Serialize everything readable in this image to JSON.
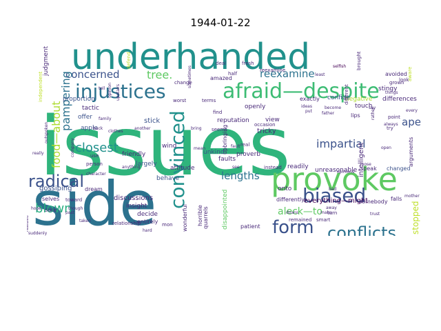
{
  "title": "1944-01-22",
  "words": [
    {
      "text": "issues",
      "color": "#2fb47c"
    },
    {
      "text": "side",
      "color": "#2c728e"
    },
    {
      "text": "underhanded",
      "color": "#21918c"
    },
    {
      "text": "provoke",
      "color": "#5ec962"
    },
    {
      "text": "afraid—despite",
      "color": "#3dbc74"
    },
    {
      "text": "injustices",
      "color": "#2c728e"
    },
    {
      "text": "biased",
      "color": "#3b528b"
    },
    {
      "text": "conflicts",
      "color": "#2c728e"
    },
    {
      "text": "form",
      "color": "#3b528b"
    },
    {
      "text": "convinced",
      "color": "#21918c"
    },
    {
      "text": "radical",
      "color": "#3b528b"
    },
    {
      "text": "blown",
      "color": "#28ae80"
    },
    {
      "text": "closest",
      "color": "#21918c"
    },
    {
      "text": "reexamine",
      "color": "#2c728e"
    },
    {
      "text": "concerned",
      "color": "#3b528b"
    },
    {
      "text": "tree.",
      "color": "#5ec962"
    },
    {
      "text": "impartial",
      "color": "#3b528b"
    },
    {
      "text": "lengths",
      "color": "#2c728e"
    },
    {
      "text": "pampering",
      "color": "#2c728e"
    },
    {
      "text": "food—about",
      "color": "#addc30"
    },
    {
      "text": "aleck—to",
      "color": "#5ec962"
    },
    {
      "text": "ape",
      "color": "#3b528b"
    },
    {
      "text": "stopped",
      "color": "#bddf26"
    },
    {
      "text": "everything—might",
      "color": "#440154"
    },
    {
      "text": "discussions",
      "color": "#482878"
    },
    {
      "text": "gossiping",
      "color": "#3b528b"
    },
    {
      "text": "intelligent",
      "color": "#482878"
    },
    {
      "text": "reputation",
      "color": "#482878"
    },
    {
      "text": "tricky",
      "color": "#482878"
    },
    {
      "text": "apple",
      "color": "#3b528b"
    },
    {
      "text": "attitude",
      "color": "#482878"
    },
    {
      "text": "insight",
      "color": "#482878"
    },
    {
      "text": "decide",
      "color": "#482878"
    },
    {
      "text": "behave",
      "color": "#3b528b"
    },
    {
      "text": "stick",
      "color": "#3b528b"
    },
    {
      "text": "tactic",
      "color": "#482878"
    },
    {
      "text": "unkind",
      "color": "#3b528b"
    },
    {
      "text": "proverb",
      "color": "#482878"
    },
    {
      "text": "offer",
      "color": "#3b528b"
    },
    {
      "text": "friendly",
      "color": "#482878"
    },
    {
      "text": "largely",
      "color": "#3b528b"
    },
    {
      "text": "wind",
      "color": "#482878"
    },
    {
      "text": "faults",
      "color": "#482878"
    },
    {
      "text": "differences",
      "color": "#482878"
    },
    {
      "text": "negative",
      "color": "#addc30"
    },
    {
      "text": "touch",
      "color": "#482878"
    },
    {
      "text": "confide",
      "color": "#3b528b"
    },
    {
      "text": "exactly",
      "color": "#482878"
    },
    {
      "text": "amazed",
      "color": "#482878"
    },
    {
      "text": "proportion",
      "color": "#3b528b"
    },
    {
      "text": "judgment",
      "color": "#482878"
    },
    {
      "text": "stingy",
      "color": "#482878"
    },
    {
      "text": "openly",
      "color": "#482878"
    },
    {
      "text": "view",
      "color": "#482878"
    },
    {
      "text": "onto",
      "color": "#482878"
    },
    {
      "text": "readily",
      "color": "#482878"
    },
    {
      "text": "unreasonable",
      "color": "#482878"
    },
    {
      "text": "speak",
      "color": "#482878"
    },
    {
      "text": "changed",
      "color": "#3b528b"
    },
    {
      "text": "disappointed",
      "color": "#5ec962"
    },
    {
      "text": "differently",
      "color": "#482878"
    },
    {
      "text": "quarrels",
      "color": "#482878"
    },
    {
      "text": "wonderful",
      "color": "#482878"
    },
    {
      "text": "horrible",
      "color": "#482878"
    },
    {
      "text": "patient",
      "color": "#482878"
    },
    {
      "text": "remained",
      "color": "#482878"
    },
    {
      "text": "smart",
      "color": "#482878"
    },
    {
      "text": "somebody",
      "color": "#482878"
    },
    {
      "text": "falls",
      "color": "#482878"
    },
    {
      "text": "selves",
      "color": "#482878"
    },
    {
      "text": "sure",
      "color": "#482878"
    },
    {
      "text": "dream",
      "color": "#482878"
    },
    {
      "text": "avoided",
      "color": "#482878"
    },
    {
      "text": "grown",
      "color": "#482878"
    },
    {
      "text": "lips",
      "color": "#482878"
    },
    {
      "text": "arguments",
      "color": "#482878"
    },
    {
      "text": "reexamine",
      "color": "#482878"
    },
    {
      "text": "fresh",
      "color": "#482878"
    },
    {
      "text": "deal",
      "color": "#482878"
    },
    {
      "text": "defend",
      "color": "#bddf26"
    },
    {
      "text": "brought",
      "color": "#482878"
    },
    {
      "text": "selfish",
      "color": "#440154"
    },
    {
      "text": "different",
      "color": "#482878"
    },
    {
      "text": "least",
      "color": "#482878"
    },
    {
      "text": "look",
      "color": "#482878"
    },
    {
      "text": "half",
      "color": "#482878"
    },
    {
      "text": "change",
      "color": "#482878"
    },
    {
      "text": "worst",
      "color": "#482878"
    },
    {
      "text": "terms",
      "color": "#482878"
    },
    {
      "text": "find",
      "color": "#482878"
    },
    {
      "text": "seems",
      "color": "#482878"
    },
    {
      "text": "real",
      "color": "#482878"
    },
    {
      "text": "instead",
      "color": "#482878"
    },
    {
      "text": "mean",
      "color": "#482878"
    },
    {
      "text": "doans",
      "color": "#482878"
    },
    {
      "text": "person",
      "color": "#482878"
    },
    {
      "text": "use",
      "color": "#482878"
    },
    {
      "text": "company",
      "color": "#482878"
    },
    {
      "text": "independent",
      "color": "#bddf26"
    },
    {
      "text": "upstairs",
      "color": "#482878"
    },
    {
      "text": "opinion",
      "color": "#482878"
    },
    {
      "text": "opinions",
      "color": "#482878"
    },
    {
      "text": "toward",
      "color": "#482878"
    },
    {
      "text": "hope",
      "color": "#482878"
    },
    {
      "text": "mon",
      "color": "#482878"
    },
    {
      "text": "point",
      "color": "#482878"
    },
    {
      "text": "upbringing",
      "color": "#482878"
    },
    {
      "text": "occasion",
      "color": "#482878"
    },
    {
      "text": "aware",
      "color": "#bddf26"
    },
    {
      "text": "become",
      "color": "#482878"
    },
    {
      "text": "turn",
      "color": "#482878"
    },
    {
      "text": "entirely",
      "color": "#482878"
    },
    {
      "text": "try",
      "color": "#482878"
    },
    {
      "text": "relationship",
      "color": "#482878"
    },
    {
      "text": "sometimes",
      "color": "#482878"
    },
    {
      "text": "family",
      "color": "#482878"
    },
    {
      "text": "past",
      "color": "#482878"
    },
    {
      "text": "realized",
      "color": "#482878"
    },
    {
      "text": "though",
      "color": "#482878"
    },
    {
      "text": "clothes",
      "color": "#482878"
    },
    {
      "text": "outspoken",
      "color": "#482878"
    },
    {
      "text": "another",
      "color": "#482878"
    },
    {
      "text": "really",
      "color": "#482878"
    },
    {
      "text": "taken",
      "color": "#482878"
    },
    {
      "text": "open",
      "color": "#482878"
    },
    {
      "text": "rather",
      "color": "#482878"
    },
    {
      "text": "hard",
      "color": "#482878"
    },
    {
      "text": "see",
      "color": "#482878"
    },
    {
      "text": "fault",
      "color": "#482878"
    },
    {
      "text": "bad",
      "color": "#482878"
    },
    {
      "text": "every",
      "color": "#482878"
    },
    {
      "text": "say",
      "color": "#482878"
    },
    {
      "text": "father",
      "color": "#482878"
    },
    {
      "text": "ideas",
      "color": "#482878"
    },
    {
      "text": "suddenly",
      "color": "#482878"
    },
    {
      "text": "mother",
      "color": "#482878"
    },
    {
      "text": "away",
      "color": "#482878"
    },
    {
      "text": "things",
      "color": "#482878"
    },
    {
      "text": "put",
      "color": "#482878"
    },
    {
      "text": "make",
      "color": "#482878"
    },
    {
      "text": "loose",
      "color": "#482878"
    },
    {
      "text": "tell",
      "color": "#482878"
    },
    {
      "text": "back",
      "color": "#482878"
    },
    {
      "text": "bring",
      "color": "#482878"
    },
    {
      "text": "trust",
      "color": "#482878"
    },
    {
      "text": "anything",
      "color": "#482878"
    },
    {
      "text": "always",
      "color": "#482878"
    },
    {
      "text": "character",
      "color": "#482878"
    }
  ]
}
